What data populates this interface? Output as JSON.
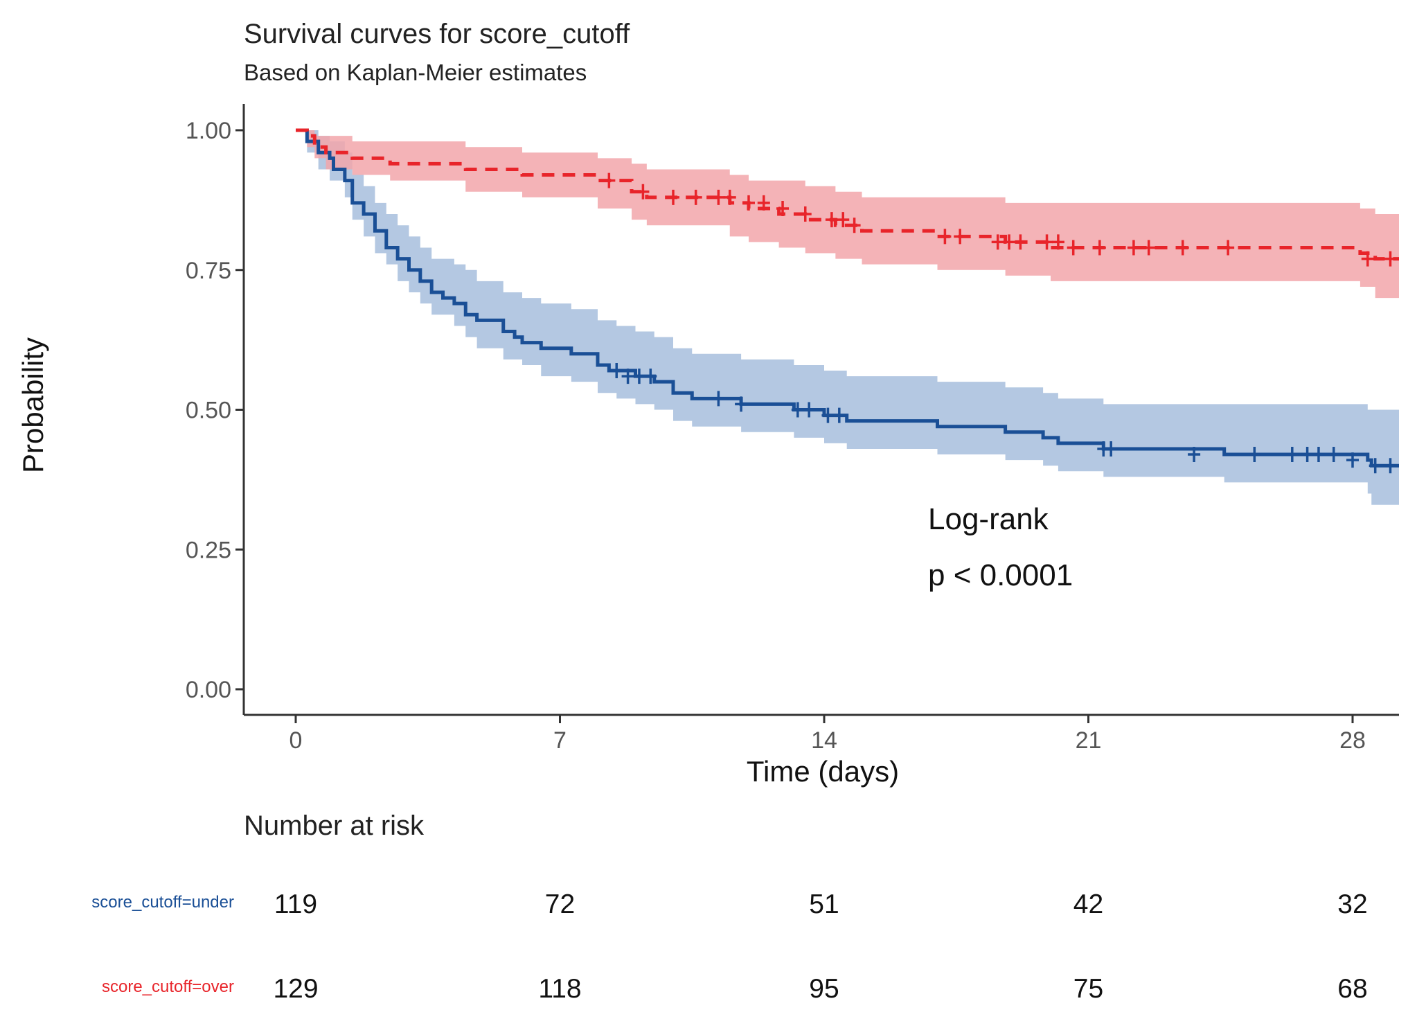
{
  "chart_data": {
    "type": "line",
    "subtype": "kaplan-meier survival",
    "title": "Survival curves for score_cutoff",
    "subtitle": "Based on Kaplan-Meier estimates",
    "xlabel": "Time (days)",
    "ylabel": "Probability",
    "xlim": [
      -2,
      29.5
    ],
    "ylim": [
      -0.05,
      1.05
    ],
    "xticks": [
      0,
      7,
      14,
      21,
      28
    ],
    "yticks": [
      0,
      0.25,
      0.5,
      0.75,
      1.0
    ],
    "xtick_labels": [
      "0",
      "7",
      "14",
      "21",
      "28"
    ],
    "ytick_labels": [
      "0.00",
      "0.25",
      "0.50",
      "0.75",
      "1.00"
    ],
    "annotation": {
      "line1": "Log-rank",
      "line2": "p < 0.0001"
    },
    "series": [
      {
        "name": "score_cutoff=under",
        "color": "#1a4f96",
        "band_color": "#a7bedd",
        "linestyle": "solid",
        "steps": [
          [
            0,
            1.0
          ],
          [
            0.3,
            0.98
          ],
          [
            0.6,
            0.96
          ],
          [
            0.9,
            0.95
          ],
          [
            1.0,
            0.93
          ],
          [
            1.3,
            0.91
          ],
          [
            1.5,
            0.87
          ],
          [
            1.8,
            0.85
          ],
          [
            2.1,
            0.82
          ],
          [
            2.4,
            0.79
          ],
          [
            2.7,
            0.77
          ],
          [
            3.0,
            0.75
          ],
          [
            3.3,
            0.73
          ],
          [
            3.6,
            0.71
          ],
          [
            3.9,
            0.7
          ],
          [
            4.2,
            0.69
          ],
          [
            4.5,
            0.67
          ],
          [
            4.8,
            0.66
          ],
          [
            5.5,
            0.64
          ],
          [
            5.8,
            0.63
          ],
          [
            6.0,
            0.62
          ],
          [
            6.5,
            0.61
          ],
          [
            7.3,
            0.6
          ],
          [
            8.0,
            0.58
          ],
          [
            8.3,
            0.57
          ],
          [
            9.0,
            0.56
          ],
          [
            9.5,
            0.55
          ],
          [
            10.0,
            0.53
          ],
          [
            10.5,
            0.52
          ],
          [
            11.8,
            0.51
          ],
          [
            13.2,
            0.5
          ],
          [
            14.0,
            0.49
          ],
          [
            14.6,
            0.48
          ],
          [
            17.0,
            0.47
          ],
          [
            18.8,
            0.46
          ],
          [
            19.8,
            0.45
          ],
          [
            20.2,
            0.44
          ],
          [
            21.4,
            0.43
          ],
          [
            24.6,
            0.42
          ],
          [
            28.4,
            0.41
          ],
          [
            28.5,
            0.4
          ]
        ],
        "lower": [
          [
            0,
            1.0
          ],
          [
            0.3,
            0.96
          ],
          [
            0.6,
            0.93
          ],
          [
            0.9,
            0.91
          ],
          [
            1.3,
            0.88
          ],
          [
            1.5,
            0.84
          ],
          [
            1.8,
            0.81
          ],
          [
            2.1,
            0.78
          ],
          [
            2.4,
            0.76
          ],
          [
            2.7,
            0.73
          ],
          [
            3.0,
            0.71
          ],
          [
            3.3,
            0.69
          ],
          [
            3.6,
            0.67
          ],
          [
            4.2,
            0.65
          ],
          [
            4.5,
            0.63
          ],
          [
            4.8,
            0.61
          ],
          [
            5.5,
            0.59
          ],
          [
            6.0,
            0.58
          ],
          [
            6.5,
            0.56
          ],
          [
            7.3,
            0.55
          ],
          [
            8.0,
            0.53
          ],
          [
            8.5,
            0.52
          ],
          [
            9.0,
            0.51
          ],
          [
            9.5,
            0.5
          ],
          [
            10.0,
            0.48
          ],
          [
            10.5,
            0.47
          ],
          [
            11.8,
            0.46
          ],
          [
            13.2,
            0.45
          ],
          [
            14.0,
            0.44
          ],
          [
            14.6,
            0.43
          ],
          [
            17.0,
            0.42
          ],
          [
            18.8,
            0.41
          ],
          [
            19.8,
            0.4
          ],
          [
            20.2,
            0.39
          ],
          [
            21.4,
            0.38
          ],
          [
            24.6,
            0.37
          ],
          [
            28.4,
            0.35
          ],
          [
            28.5,
            0.33
          ]
        ],
        "upper": [
          [
            0,
            1.0
          ],
          [
            0.3,
            1.0
          ],
          [
            0.6,
            0.99
          ],
          [
            0.9,
            0.98
          ],
          [
            1.3,
            0.96
          ],
          [
            1.5,
            0.92
          ],
          [
            1.8,
            0.9
          ],
          [
            2.1,
            0.87
          ],
          [
            2.4,
            0.85
          ],
          [
            2.7,
            0.83
          ],
          [
            3.0,
            0.81
          ],
          [
            3.3,
            0.79
          ],
          [
            3.6,
            0.77
          ],
          [
            4.2,
            0.76
          ],
          [
            4.5,
            0.75
          ],
          [
            4.8,
            0.73
          ],
          [
            5.5,
            0.71
          ],
          [
            6.0,
            0.7
          ],
          [
            6.5,
            0.69
          ],
          [
            7.3,
            0.68
          ],
          [
            8.0,
            0.66
          ],
          [
            8.5,
            0.65
          ],
          [
            9.0,
            0.64
          ],
          [
            9.5,
            0.63
          ],
          [
            10.0,
            0.61
          ],
          [
            10.5,
            0.6
          ],
          [
            11.8,
            0.59
          ],
          [
            13.2,
            0.58
          ],
          [
            14.0,
            0.57
          ],
          [
            14.6,
            0.56
          ],
          [
            17.0,
            0.55
          ],
          [
            18.8,
            0.54
          ],
          [
            19.8,
            0.53
          ],
          [
            20.2,
            0.52
          ],
          [
            21.4,
            0.51
          ],
          [
            24.6,
            0.51
          ],
          [
            28.4,
            0.5
          ],
          [
            28.5,
            0.5
          ]
        ],
        "censored": [
          [
            11.2,
            0.52
          ],
          [
            11.8,
            0.51
          ],
          [
            13.3,
            0.5
          ],
          [
            13.6,
            0.5
          ],
          [
            14.1,
            0.49
          ],
          [
            14.4,
            0.49
          ],
          [
            8.5,
            0.57
          ],
          [
            8.8,
            0.56
          ],
          [
            9.1,
            0.56
          ],
          [
            9.4,
            0.56
          ],
          [
            21.4,
            0.43
          ],
          [
            21.6,
            0.43
          ],
          [
            23.8,
            0.42
          ],
          [
            25.4,
            0.42
          ],
          [
            26.4,
            0.42
          ],
          [
            26.8,
            0.42
          ],
          [
            27.1,
            0.42
          ],
          [
            27.5,
            0.42
          ],
          [
            28.0,
            0.41
          ],
          [
            28.6,
            0.4
          ],
          [
            29.0,
            0.4
          ]
        ]
      },
      {
        "name": "score_cutoff=over",
        "color": "#e8242a",
        "band_color": "#f2a6aa",
        "linestyle": "dashed",
        "steps": [
          [
            0,
            1.0
          ],
          [
            0.3,
            0.99
          ],
          [
            0.5,
            0.97
          ],
          [
            0.8,
            0.96
          ],
          [
            1.5,
            0.95
          ],
          [
            2.5,
            0.94
          ],
          [
            4.5,
            0.93
          ],
          [
            6.0,
            0.92
          ],
          [
            8.0,
            0.91
          ],
          [
            8.9,
            0.89
          ],
          [
            9.3,
            0.88
          ],
          [
            11.5,
            0.87
          ],
          [
            12.0,
            0.86
          ],
          [
            12.8,
            0.85
          ],
          [
            13.5,
            0.84
          ],
          [
            14.3,
            0.83
          ],
          [
            15.0,
            0.82
          ],
          [
            17.0,
            0.81
          ],
          [
            18.8,
            0.8
          ],
          [
            20.0,
            0.79
          ],
          [
            28.2,
            0.78
          ],
          [
            28.6,
            0.77
          ]
        ],
        "lower": [
          [
            0,
            1.0
          ],
          [
            0.3,
            0.97
          ],
          [
            0.5,
            0.95
          ],
          [
            0.8,
            0.93
          ],
          [
            1.5,
            0.92
          ],
          [
            2.5,
            0.91
          ],
          [
            4.5,
            0.89
          ],
          [
            6.0,
            0.88
          ],
          [
            8.0,
            0.86
          ],
          [
            8.9,
            0.84
          ],
          [
            9.3,
            0.83
          ],
          [
            11.5,
            0.81
          ],
          [
            12.0,
            0.8
          ],
          [
            12.8,
            0.79
          ],
          [
            13.5,
            0.78
          ],
          [
            14.3,
            0.77
          ],
          [
            15.0,
            0.76
          ],
          [
            17.0,
            0.75
          ],
          [
            18.8,
            0.74
          ],
          [
            20.0,
            0.73
          ],
          [
            28.2,
            0.72
          ],
          [
            28.6,
            0.7
          ]
        ],
        "upper": [
          [
            0,
            1.0
          ],
          [
            0.3,
            1.0
          ],
          [
            0.5,
            0.99
          ],
          [
            0.8,
            0.99
          ],
          [
            1.5,
            0.98
          ],
          [
            2.5,
            0.98
          ],
          [
            4.5,
            0.97
          ],
          [
            6.0,
            0.96
          ],
          [
            8.0,
            0.95
          ],
          [
            8.9,
            0.94
          ],
          [
            9.3,
            0.93
          ],
          [
            11.5,
            0.92
          ],
          [
            12.0,
            0.91
          ],
          [
            12.8,
            0.91
          ],
          [
            13.5,
            0.9
          ],
          [
            14.3,
            0.89
          ],
          [
            15.0,
            0.88
          ],
          [
            17.0,
            0.88
          ],
          [
            18.8,
            0.87
          ],
          [
            20.0,
            0.87
          ],
          [
            28.2,
            0.86
          ],
          [
            28.6,
            0.85
          ]
        ],
        "censored": [
          [
            8.3,
            0.91
          ],
          [
            9.2,
            0.89
          ],
          [
            10.0,
            0.88
          ],
          [
            10.6,
            0.88
          ],
          [
            11.2,
            0.88
          ],
          [
            11.5,
            0.88
          ],
          [
            12.0,
            0.87
          ],
          [
            12.4,
            0.87
          ],
          [
            12.9,
            0.86
          ],
          [
            13.5,
            0.85
          ],
          [
            14.2,
            0.84
          ],
          [
            14.5,
            0.84
          ],
          [
            14.8,
            0.83
          ],
          [
            17.2,
            0.81
          ],
          [
            17.6,
            0.81
          ],
          [
            18.6,
            0.8
          ],
          [
            18.9,
            0.8
          ],
          [
            19.2,
            0.8
          ],
          [
            19.9,
            0.8
          ],
          [
            20.2,
            0.8
          ],
          [
            20.6,
            0.79
          ],
          [
            21.3,
            0.79
          ],
          [
            22.2,
            0.79
          ],
          [
            22.6,
            0.79
          ],
          [
            23.5,
            0.79
          ],
          [
            24.7,
            0.79
          ],
          [
            28.4,
            0.77
          ],
          [
            29.0,
            0.77
          ]
        ]
      }
    ],
    "risk_table": {
      "title": "Number at risk",
      "times": [
        0,
        7,
        14,
        21,
        28
      ],
      "rows": [
        {
          "label": "score_cutoff=under",
          "color": "#1a4f96",
          "values": [
            "119",
            "72",
            "51",
            "42",
            "32"
          ]
        },
        {
          "label": "score_cutoff=over",
          "color": "#e8242a",
          "values": [
            "129",
            "118",
            "95",
            "75",
            "68"
          ]
        }
      ]
    }
  }
}
